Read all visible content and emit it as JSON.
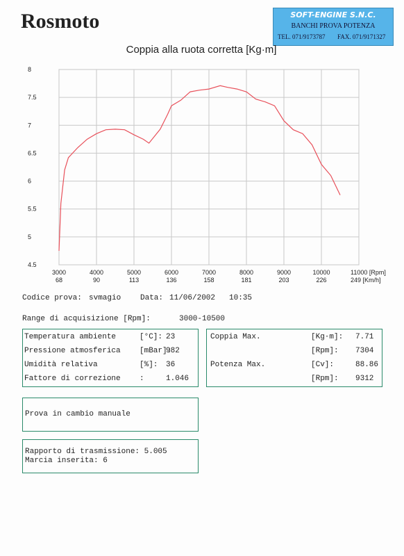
{
  "header": {
    "brand": "Rosmoto",
    "company": "SOFT-ENGINE S.N.C.",
    "company_line": "BANCHI PROVA POTENZA",
    "tel": "TEL. 071/9173787",
    "fax": "FAX. 071/9171327"
  },
  "chart_data": {
    "type": "line",
    "title": "Coppia alla ruota corretta [Kg·m]",
    "color": "#e8505a",
    "grid": true,
    "x": [
      3000,
      3050,
      3150,
      3250,
      3500,
      3750,
      4000,
      4250,
      4500,
      4750,
      5000,
      5250,
      5400,
      5700,
      5900,
      6000,
      6250,
      6500,
      6750,
      7000,
      7300,
      7500,
      7750,
      8000,
      8250,
      8500,
      8750,
      9000,
      9250,
      9500,
      9750,
      10000,
      10250,
      10500
    ],
    "values": [
      4.75,
      5.6,
      6.2,
      6.42,
      6.6,
      6.75,
      6.85,
      6.92,
      6.93,
      6.92,
      6.83,
      6.75,
      6.68,
      6.93,
      7.2,
      7.35,
      7.45,
      7.6,
      7.63,
      7.65,
      7.71,
      7.68,
      7.65,
      7.6,
      7.47,
      7.42,
      7.35,
      7.08,
      6.92,
      6.85,
      6.65,
      6.3,
      6.1,
      5.75
    ],
    "xlim": [
      3000,
      11000
    ],
    "ylim": [
      4.5,
      8
    ],
    "xticks": [
      3000,
      4000,
      5000,
      6000,
      7000,
      8000,
      9000,
      10000,
      {
        "value": 11000,
        "label": "11000 [Rpm]"
      }
    ],
    "x2ticks": [
      {
        "value": 3000,
        "label": "68"
      },
      {
        "value": 4000,
        "label": "90"
      },
      {
        "value": 5000,
        "label": "113"
      },
      {
        "value": 6000,
        "label": "136"
      },
      {
        "value": 7000,
        "label": "158"
      },
      {
        "value": 8000,
        "label": "181"
      },
      {
        "value": 9000,
        "label": "203"
      },
      {
        "value": 10000,
        "label": "226"
      },
      {
        "value": 11000,
        "label": "249 [Km/h]"
      }
    ],
    "yticks": [
      4.5,
      5,
      5.5,
      6,
      6.5,
      7,
      7.5,
      8
    ]
  },
  "test": {
    "code_label": "Codice prova:",
    "code": "svmagio",
    "date_label": "Data:",
    "date": "11/06/2002",
    "time": "10:35",
    "range_label": "Range di acquisizione [Rpm]:",
    "range": "3000-10500"
  },
  "conditions": [
    {
      "label": "Temperatura ambiente",
      "unit": "[°C]:",
      "value": "23"
    },
    {
      "label": "Pressione atmosferica",
      "unit": "[mBar]:",
      "value": "982"
    },
    {
      "label": "Umidità relativa",
      "unit": "[%]:",
      "value": "36"
    },
    {
      "label": "Fattore di correzione",
      "unit": ":",
      "value": "1.046"
    }
  ],
  "results": [
    {
      "label": "Coppia Max.",
      "unit": "[Kg·m]:",
      "value": "7.71"
    },
    {
      "unit": "[Rpm]:",
      "value": "7304"
    },
    {
      "label": "Potenza Max.",
      "unit": "[Cv]:",
      "value": "88.86"
    },
    {
      "unit": "[Rpm]:",
      "value": "9312"
    }
  ],
  "notes": {
    "mode": "Prova in cambio manuale",
    "ratio": "Rapporto di trasmissione: 5.005",
    "gear": "Marcia inserita: 6"
  }
}
